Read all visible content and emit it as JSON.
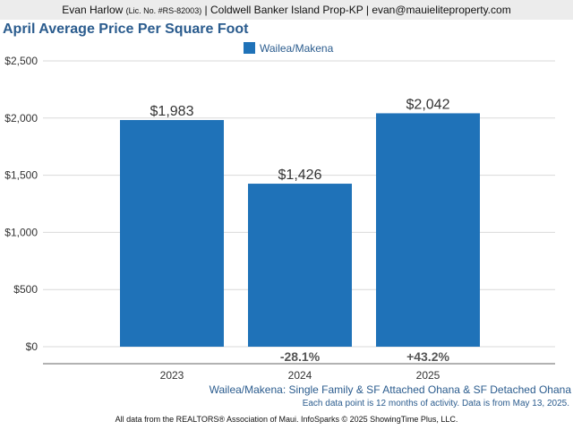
{
  "header": {
    "agent_name": "Evan Harlow",
    "license": "(Lic. No. #RS-82003)",
    "brokerage": "| Coldwell Banker Island Prop-KP |",
    "email": "evan@mauieliteproperty.com"
  },
  "chart_data": {
    "type": "bar",
    "title": "April Average Price Per Square Foot",
    "categories": [
      "2023",
      "2024",
      "2025"
    ],
    "series": [
      {
        "name": "Wailea/Makena",
        "color": "#1f72b8",
        "values": [
          1983,
          1426,
          2042
        ],
        "value_labels": [
          "$1,983",
          "$1,426",
          "$2,042"
        ]
      }
    ],
    "change_labels": [
      "",
      "-28.1%",
      "+43.2%"
    ],
    "yticks": [
      0,
      500,
      1000,
      1500,
      2000,
      2500
    ],
    "ytick_labels": [
      "$0",
      "$500",
      "$1,000",
      "$1,500",
      "$2,000",
      "$2,500"
    ],
    "ylim": [
      0,
      2500
    ],
    "xlabel": "",
    "ylabel": "",
    "grid": true,
    "legend_position": "top-center"
  },
  "subtitle": "Wailea/Makena: Single Family & SF Attached Ohana & SF Detached Ohana",
  "note": "Each data point is 12 months of activity. Data is from May 13, 2025.",
  "footer": "All data from the REALTORS® Association of Maui. InfoSparks © 2025 ShowingTime Plus, LLC."
}
